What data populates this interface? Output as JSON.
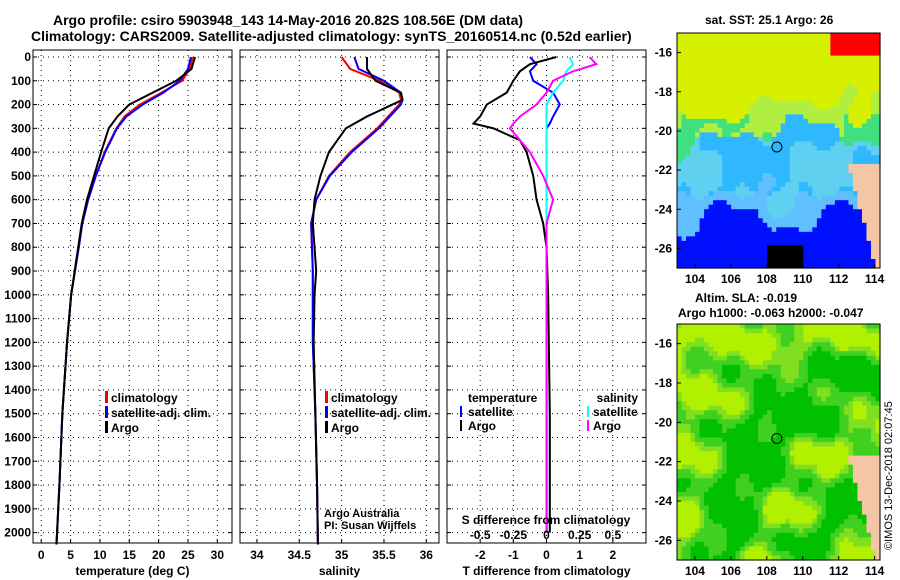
{
  "title_line1": "Argo profile: csiro 5903948_143 14-May-2016 20.82S 108.56E (DM data)",
  "title_line2": "Climatology: CARS2009. Satellite-adjusted climatology: synTS_20160514.nc (0.52d earlier)",
  "colors": {
    "climatology": "#ff0000",
    "satellite": "#0000ff",
    "argo": "#000000",
    "sal_satellite": "#00ffff",
    "sal_argo": "#ff00ff"
  },
  "chart_data": [
    {
      "type": "line",
      "xlabel": "temperature (deg C)",
      "ylabel": "depth",
      "xlim": [
        -1.4,
        32.5
      ],
      "ylim": [
        2050,
        0
      ],
      "xticks": [
        "0",
        "5",
        "10",
        "15",
        "20",
        "25",
        "30"
      ],
      "yticks": [
        "0",
        "100",
        "200",
        "300",
        "400",
        "500",
        "600",
        "700",
        "800",
        "900",
        "1000",
        "1100",
        "1200",
        "1300",
        "1400",
        "1500",
        "1600",
        "1700",
        "1800",
        "1900",
        "2000"
      ],
      "legend": [
        "climatology",
        "satellite-adj. clim.",
        "Argo"
      ],
      "depth": [
        0,
        50,
        100,
        150,
        200,
        250,
        300,
        400,
        500,
        600,
        700,
        800,
        1000,
        1200,
        1500,
        1800,
        2050
      ],
      "series": [
        {
          "name": "climatology",
          "values": [
            25.8,
            25.3,
            24.0,
            20.5,
            16.8,
            14.2,
            12.8,
            10.8,
            9.3,
            8.0,
            7.0,
            6.4,
            5.1,
            4.4,
            3.6,
            3.1,
            2.6
          ]
        },
        {
          "name": "satellite-adj. clim.",
          "values": [
            25.5,
            25.0,
            23.6,
            20.8,
            17.3,
            14.5,
            12.9,
            10.9,
            9.3,
            8.0,
            7.0,
            6.4,
            5.1,
            4.4,
            3.6,
            3.1,
            2.6
          ]
        },
        {
          "name": "Argo",
          "values": [
            26.2,
            25.6,
            23.0,
            19.0,
            15.0,
            13.0,
            11.5,
            10.2,
            9.0,
            7.8,
            6.9,
            6.3,
            5.1,
            4.4,
            3.6,
            3.1,
            2.6
          ]
        }
      ]
    },
    {
      "type": "line",
      "xlabel": "salinity",
      "xlim": [
        33.8,
        36.15
      ],
      "ylim": [
        2050,
        0
      ],
      "xticks": [
        "34",
        "34.5",
        "35",
        "35.5",
        "36"
      ],
      "legend": [
        "climatology",
        "satellite-adj. clim.",
        "Argo"
      ],
      "annotation": [
        "Argo Australia",
        "PI: Susan Wijffels"
      ],
      "depth": [
        0,
        50,
        100,
        150,
        180,
        200,
        250,
        300,
        400,
        500,
        600,
        700,
        800,
        900,
        1000,
        1200,
        1500,
        1800,
        2050
      ],
      "series": [
        {
          "name": "climatology",
          "values": [
            35.0,
            35.1,
            35.45,
            35.68,
            35.7,
            35.68,
            35.55,
            35.42,
            35.1,
            34.85,
            34.7,
            34.64,
            34.65,
            34.66,
            34.66,
            34.66,
            34.69,
            34.71,
            34.72
          ]
        },
        {
          "name": "satellite-adj. clim.",
          "values": [
            35.15,
            35.2,
            35.5,
            35.7,
            35.72,
            35.7,
            35.57,
            35.44,
            35.12,
            34.86,
            34.7,
            34.64,
            34.65,
            34.66,
            34.66,
            34.66,
            34.69,
            34.71,
            34.72
          ]
        },
        {
          "name": "Argo",
          "values": [
            35.3,
            35.3,
            35.4,
            35.7,
            35.72,
            35.6,
            35.3,
            35.05,
            34.85,
            34.75,
            34.68,
            34.66,
            34.68,
            34.7,
            34.68,
            34.67,
            34.69,
            34.71,
            34.72
          ]
        }
      ]
    },
    {
      "type": "line",
      "xlabel": "T difference from climatology",
      "xlabel2": "S difference from climatology",
      "xlim": [
        -3,
        3
      ],
      "ylim": [
        2050,
        0
      ],
      "xticks": [
        "-2",
        "-1",
        "0",
        "1",
        "2"
      ],
      "xticks2": [
        "-0.5",
        "-0.25",
        "0",
        "0.25",
        "0.5"
      ],
      "legend_temperature": {
        "title": "temperature",
        "items": [
          "satellite",
          "Argo"
        ]
      },
      "legend_salinity": {
        "title": "salinity",
        "items": [
          "satellite",
          "Argo"
        ]
      },
      "depth": [
        0,
        30,
        60,
        100,
        150,
        200,
        250,
        280,
        300,
        350,
        400,
        500,
        600,
        700,
        800,
        1000,
        1500,
        2000
      ],
      "series": [
        {
          "name": "T satellite",
          "values": [
            -0.5,
            -0.3,
            -0.5,
            -0.4,
            0.2,
            0.4,
            0.2,
            0.1,
            0.0,
            0.0,
            0.0,
            0.0,
            0.0,
            0.0,
            0.0,
            0.0,
            0.0,
            0.0
          ]
        },
        {
          "name": "T Argo",
          "values": [
            0.3,
            -0.5,
            -0.8,
            -1.0,
            -1.2,
            -1.8,
            -2.0,
            -2.2,
            -1.6,
            -0.8,
            -0.6,
            -0.4,
            -0.3,
            -0.1,
            0.0,
            0.05,
            0.1,
            0.1
          ]
        },
        {
          "name": "S satellite",
          "values": [
            0.7,
            0.8,
            0.6,
            0.5,
            0.2,
            0.0,
            0.0,
            0.0,
            0.0,
            0.0,
            0.0,
            0.0,
            0.0,
            0.0,
            0.0,
            0.0,
            0.02,
            0.02
          ]
        },
        {
          "name": "S Argo",
          "values": [
            1.3,
            1.5,
            0.8,
            0.2,
            0.0,
            -0.3,
            -0.8,
            -1.0,
            -1.1,
            -0.8,
            -0.5,
            -0.1,
            0.2,
            0.0,
            0.0,
            0.0,
            0.0,
            0.0
          ]
        }
      ]
    }
  ],
  "map_sst": {
    "label": "sat. SST: 25.1 Argo: 26",
    "xticks": [
      "104",
      "106",
      "108",
      "110",
      "112",
      "114"
    ],
    "yticks": [
      "-16",
      "-18",
      "-20",
      "-22",
      "-24",
      "-26"
    ],
    "lon": 108.56,
    "lat": -20.82
  },
  "map_sla": {
    "label1": "Altim. SLA: -0.019",
    "label2": "Argo h1000: -0.063 h2000: -0.047",
    "xticks": [
      "104",
      "106",
      "108",
      "110",
      "112",
      "114"
    ],
    "yticks": [
      "-16",
      "-18",
      "-20",
      "-22",
      "-24",
      "-26"
    ],
    "lon": 108.56,
    "lat": -20.82
  },
  "credit": "©IMOS 13-Dec-2018 02:07:45"
}
